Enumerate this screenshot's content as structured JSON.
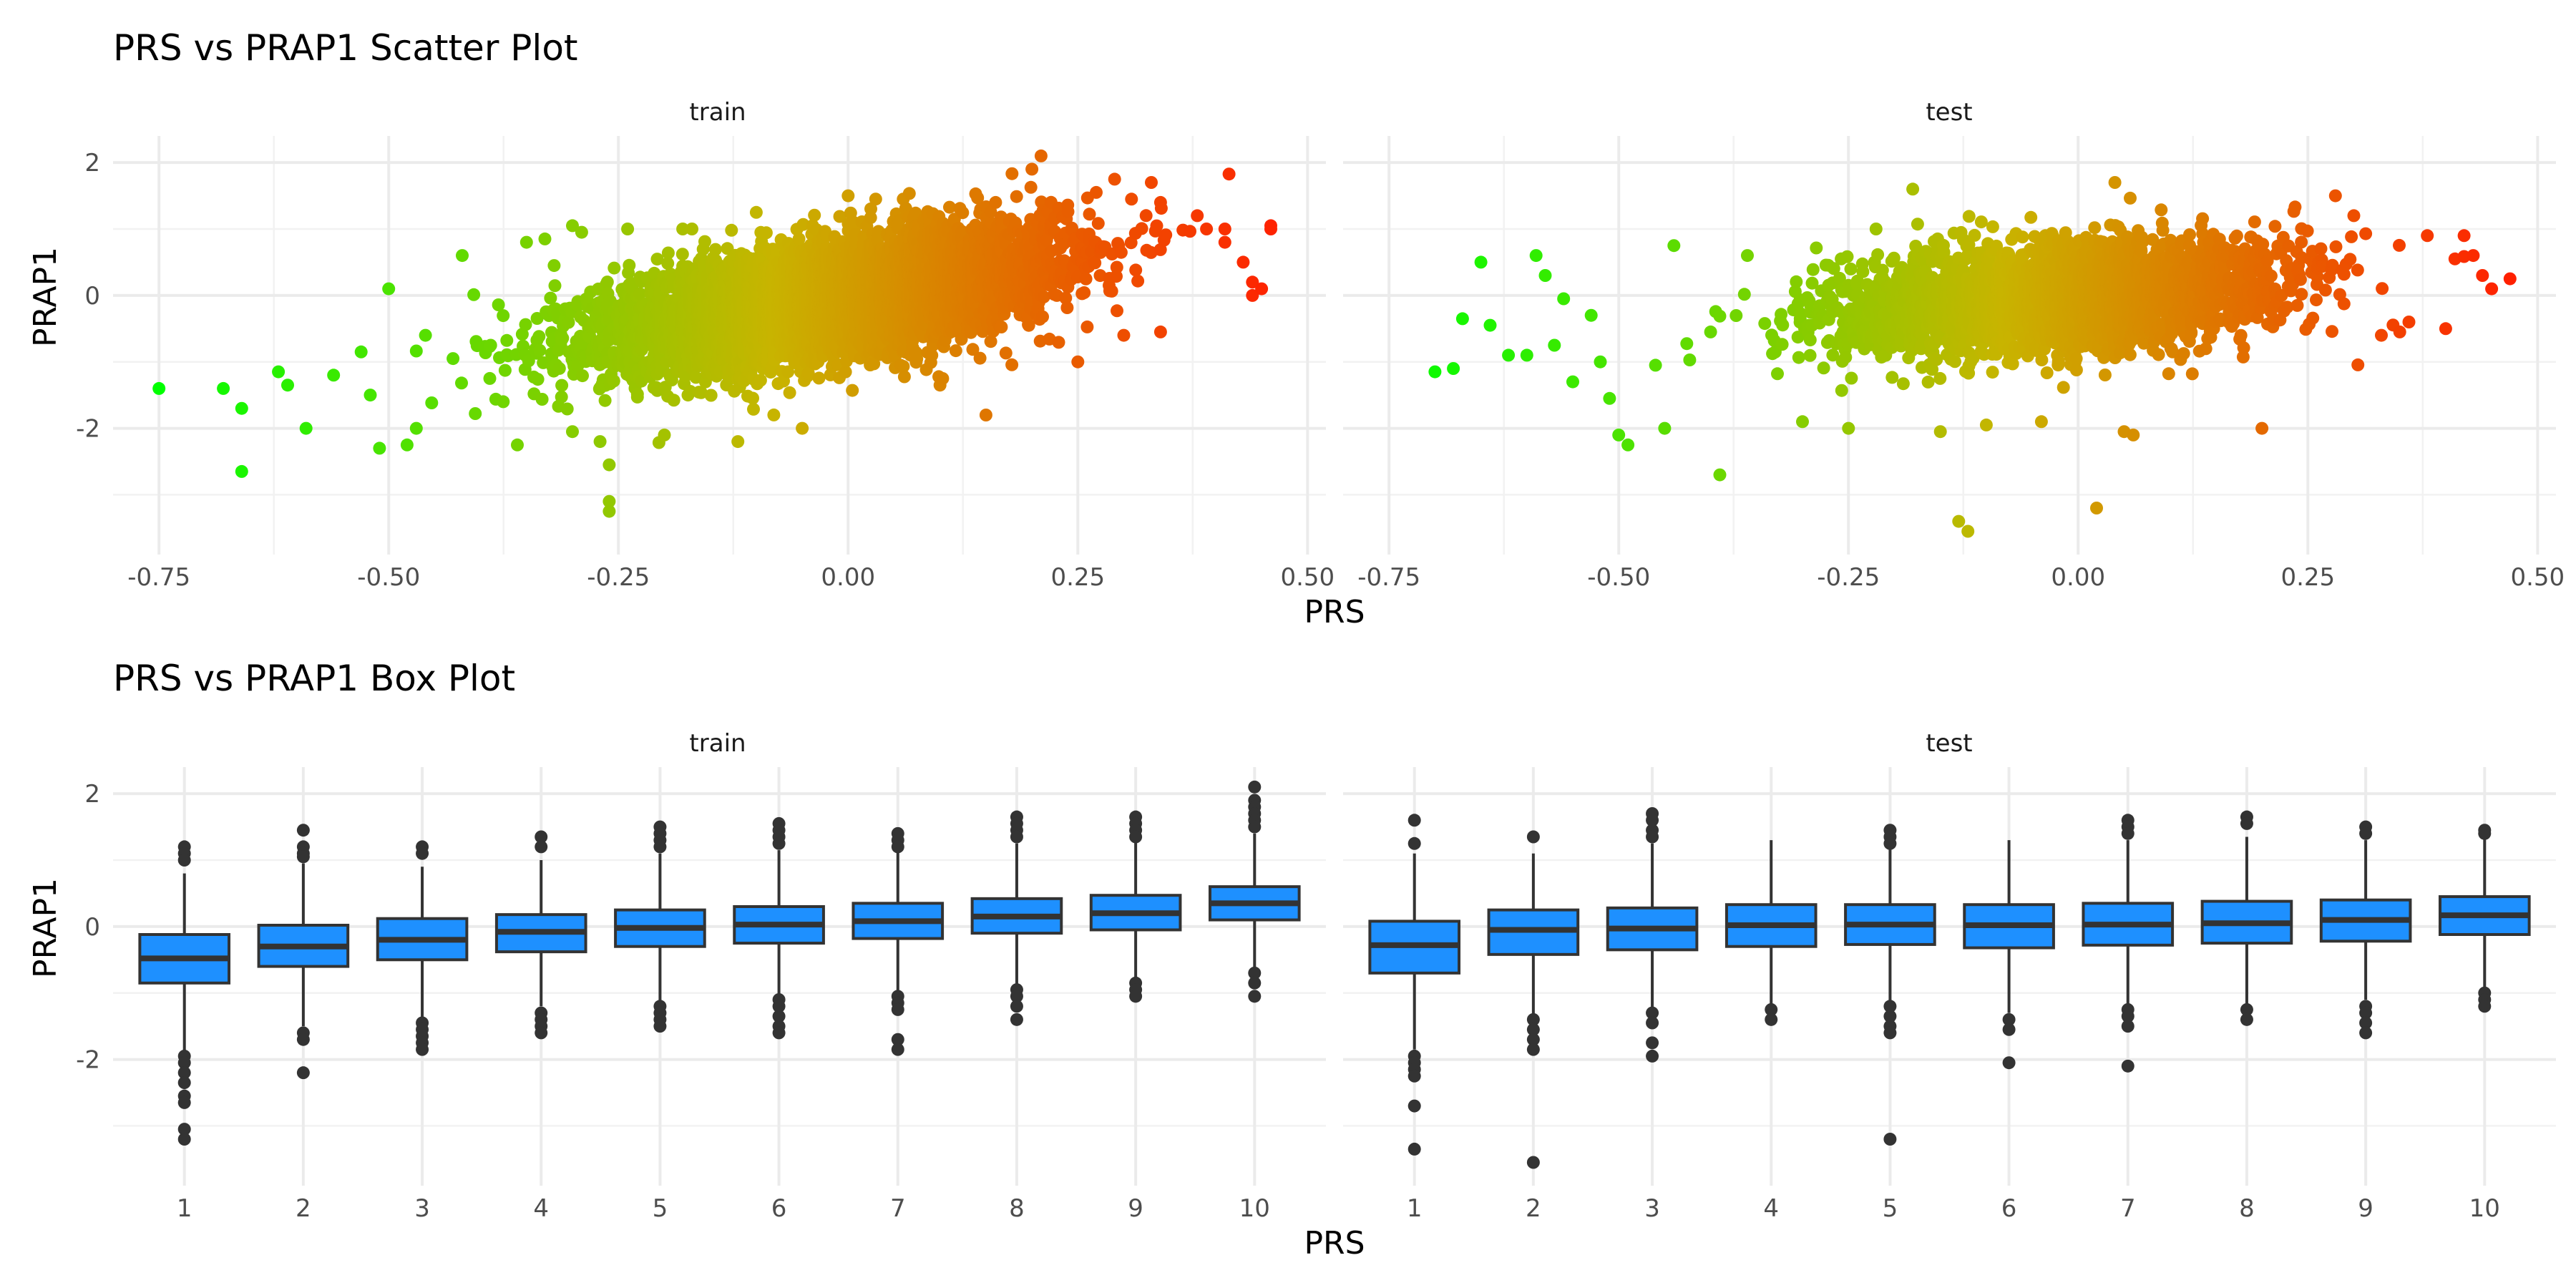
{
  "chart_data": [
    {
      "type": "scatter",
      "title": "PRS vs PRAP1 Scatter Plot",
      "xlabel": "PRS",
      "ylabel": "PRAP1",
      "xlim": [
        -0.8,
        0.52
      ],
      "ylim": [
        -3.9,
        2.4
      ],
      "x_ticks": [
        -0.75,
        -0.5,
        -0.25,
        0,
        0.25,
        0.5
      ],
      "x_tick_labels": [
        "-0.75",
        "-0.50",
        "-0.25",
        "0.00",
        "0.25",
        "0.50"
      ],
      "y_ticks": [
        -2,
        0,
        2
      ],
      "y_tick_labels": [
        "-2",
        "0",
        "2"
      ],
      "grid": true,
      "legend": "none",
      "color_gradient": {
        "low": "#00ff00",
        "mid": "#c8b400",
        "high": "#ff2000",
        "mapped_to": "PRS"
      },
      "panels": [
        {
          "name": "train",
          "slope": 2.2,
          "noise_sd": 0.42,
          "x_mean": -0.02,
          "x_sd": 0.12,
          "approx_points": 6000,
          "points": [
            [
              -0.75,
              -1.4
            ],
            [
              -0.68,
              -1.4
            ],
            [
              -0.66,
              -2.65
            ],
            [
              -0.66,
              -1.7
            ],
            [
              -0.62,
              -1.15
            ],
            [
              -0.61,
              -1.35
            ],
            [
              -0.59,
              -2.0
            ],
            [
              -0.56,
              -1.2
            ],
            [
              -0.53,
              -0.85
            ],
            [
              -0.52,
              -1.5
            ],
            [
              -0.51,
              -2.3
            ],
            [
              -0.5,
              0.1
            ],
            [
              -0.48,
              -2.25
            ],
            [
              -0.47,
              -2.0
            ],
            [
              -0.46,
              -0.6
            ],
            [
              -0.43,
              -0.95
            ],
            [
              -0.42,
              0.6
            ],
            [
              -0.39,
              -1.25
            ],
            [
              -0.36,
              -2.25
            ],
            [
              -0.35,
              0.8
            ],
            [
              -0.33,
              0.85
            ],
            [
              -0.32,
              0.45
            ],
            [
              -0.3,
              1.05
            ],
            [
              -0.3,
              -2.05
            ],
            [
              -0.29,
              0.95
            ],
            [
              -0.27,
              -2.2
            ],
            [
              -0.26,
              -2.55
            ],
            [
              -0.26,
              -3.1
            ],
            [
              -0.26,
              -3.25
            ],
            [
              -0.24,
              1.0
            ],
            [
              -0.2,
              -2.1
            ],
            [
              -0.18,
              1.0
            ],
            [
              -0.17,
              1.0
            ],
            [
              -0.12,
              -2.2
            ],
            [
              -0.1,
              1.25
            ],
            [
              -0.05,
              -2.0
            ],
            [
              0.0,
              1.5
            ],
            [
              0.03,
              1.45
            ],
            [
              0.06,
              1.45
            ],
            [
              0.15,
              -1.8
            ],
            [
              0.2,
              1.9
            ],
            [
              0.21,
              2.1
            ],
            [
              0.27,
              1.55
            ],
            [
              0.29,
              1.75
            ],
            [
              0.33,
              1.7
            ],
            [
              0.34,
              1.4
            ],
            [
              0.38,
              1.2
            ],
            [
              0.39,
              1.0
            ],
            [
              0.41,
              0.8
            ],
            [
              0.41,
              1.0
            ],
            [
              0.43,
              0.5
            ],
            [
              0.44,
              0.2
            ],
            [
              0.45,
              0.1
            ],
            [
              0.46,
              1.05
            ],
            [
              0.46,
              1.0
            ],
            [
              0.44,
              0.0
            ],
            [
              0.34,
              -0.55
            ],
            [
              0.3,
              -0.6
            ],
            [
              0.25,
              -1.0
            ],
            [
              0.1,
              -1.35
            ]
          ]
        },
        {
          "name": "test",
          "slope": 0.95,
          "noise_sd": 0.4,
          "x_mean": -0.02,
          "x_sd": 0.12,
          "approx_points": 3000,
          "points": [
            [
              -0.7,
              -1.15
            ],
            [
              -0.68,
              -1.1
            ],
            [
              -0.67,
              -0.35
            ],
            [
              -0.65,
              0.5
            ],
            [
              -0.64,
              -0.45
            ],
            [
              -0.62,
              -0.9
            ],
            [
              -0.6,
              -0.9
            ],
            [
              -0.59,
              0.6
            ],
            [
              -0.58,
              0.3
            ],
            [
              -0.57,
              -0.75
            ],
            [
              -0.56,
              -0.05
            ],
            [
              -0.55,
              -1.3
            ],
            [
              -0.53,
              -0.3
            ],
            [
              -0.52,
              -1.0
            ],
            [
              -0.51,
              -1.55
            ],
            [
              -0.5,
              -2.1
            ],
            [
              -0.49,
              -2.25
            ],
            [
              -0.46,
              -1.05
            ],
            [
              -0.44,
              0.75
            ],
            [
              -0.45,
              -2.0
            ],
            [
              -0.4,
              -0.55
            ],
            [
              -0.39,
              -2.7
            ],
            [
              -0.36,
              0.6
            ],
            [
              -0.3,
              -1.9
            ],
            [
              -0.25,
              -2.0
            ],
            [
              -0.22,
              1.0
            ],
            [
              -0.18,
              1.6
            ],
            [
              -0.15,
              -2.05
            ],
            [
              -0.13,
              -3.4
            ],
            [
              -0.12,
              -3.55
            ],
            [
              -0.1,
              -1.95
            ],
            [
              -0.04,
              -1.9
            ],
            [
              0.04,
              1.7
            ],
            [
              0.05,
              -2.05
            ],
            [
              0.06,
              -2.1
            ],
            [
              0.02,
              -3.2
            ],
            [
              0.2,
              -2.0
            ],
            [
              0.28,
              1.5
            ],
            [
              0.3,
              1.2
            ],
            [
              0.36,
              -0.4
            ],
            [
              0.38,
              0.9
            ],
            [
              0.4,
              -0.5
            ],
            [
              0.41,
              0.55
            ],
            [
              0.42,
              0.9
            ],
            [
              0.43,
              0.6
            ],
            [
              0.44,
              0.3
            ],
            [
              0.45,
              0.1
            ],
            [
              0.47,
              0.25
            ],
            [
              0.33,
              -0.6
            ],
            [
              0.35,
              -0.55
            ]
          ]
        }
      ]
    },
    {
      "type": "box",
      "title": "PRS vs PRAP1 Box Plot",
      "xlabel": "PRS",
      "ylabel": "PRAP1",
      "categories": [
        "1",
        "2",
        "3",
        "4",
        "5",
        "6",
        "7",
        "8",
        "9",
        "10"
      ],
      "ylim": [
        -3.9,
        2.4
      ],
      "y_ticks": [
        -2,
        0,
        2
      ],
      "y_tick_labels": [
        "-2",
        "0",
        "2"
      ],
      "fill_color": "#1e90ff",
      "grid": true,
      "legend": "none",
      "panels": [
        {
          "name": "train",
          "boxes": [
            {
              "q1": -0.85,
              "median": -0.48,
              "q3": -0.12,
              "low": -1.9,
              "high": 0.8,
              "outliers": [
                1.2,
                1.1,
                1.0,
                -1.95,
                -2.05,
                -2.2,
                -2.35,
                -2.55,
                -2.65,
                -3.05,
                -3.2
              ]
            },
            {
              "q1": -0.6,
              "median": -0.3,
              "q3": 0.02,
              "low": -1.5,
              "high": 0.95,
              "outliers": [
                1.45,
                1.2,
                1.1,
                1.05,
                -1.6,
                -1.7,
                -2.2
              ]
            },
            {
              "q1": -0.5,
              "median": -0.2,
              "q3": 0.12,
              "low": -1.4,
              "high": 0.9,
              "outliers": [
                1.2,
                1.1,
                -1.45,
                -1.55,
                -1.65,
                -1.75,
                -1.85
              ]
            },
            {
              "q1": -0.38,
              "median": -0.08,
              "q3": 0.18,
              "low": -1.2,
              "high": 1.0,
              "outliers": [
                1.35,
                1.2,
                -1.3,
                -1.4,
                -1.5,
                -1.6
              ]
            },
            {
              "q1": -0.3,
              "median": -0.02,
              "q3": 0.25,
              "low": -1.15,
              "high": 1.1,
              "outliers": [
                1.5,
                1.4,
                1.3,
                1.2,
                -1.2,
                -1.3,
                -1.4,
                -1.5
              ]
            },
            {
              "q1": -0.25,
              "median": 0.03,
              "q3": 0.3,
              "low": -1.05,
              "high": 1.15,
              "outliers": [
                1.55,
                1.45,
                1.35,
                1.25,
                -1.1,
                -1.2,
                -1.35,
                -1.5,
                -1.6
              ]
            },
            {
              "q1": -0.18,
              "median": 0.08,
              "q3": 0.35,
              "low": -1.0,
              "high": 1.15,
              "outliers": [
                1.4,
                1.3,
                1.2,
                -1.05,
                -1.15,
                -1.25,
                -1.7,
                -1.85
              ]
            },
            {
              "q1": -0.1,
              "median": 0.15,
              "q3": 0.42,
              "low": -0.9,
              "high": 1.25,
              "outliers": [
                1.65,
                1.55,
                1.45,
                1.35,
                -0.95,
                -1.05,
                -1.2,
                -1.4
              ]
            },
            {
              "q1": -0.05,
              "median": 0.2,
              "q3": 0.47,
              "low": -0.8,
              "high": 1.3,
              "outliers": [
                1.65,
                1.55,
                1.45,
                1.35,
                -0.85,
                -0.95,
                -1.05
              ]
            },
            {
              "q1": 0.1,
              "median": 0.35,
              "q3": 0.6,
              "low": -0.65,
              "high": 1.4,
              "outliers": [
                2.1,
                1.9,
                1.8,
                1.7,
                1.6,
                1.5,
                -0.7,
                -0.85,
                -1.05
              ]
            }
          ]
        },
        {
          "name": "test",
          "boxes": [
            {
              "q1": -0.7,
              "median": -0.28,
              "q3": 0.08,
              "low": -1.85,
              "high": 1.1,
              "outliers": [
                1.6,
                1.25,
                -1.95,
                -2.05,
                -2.15,
                -2.25,
                -2.7,
                -3.35
              ]
            },
            {
              "q1": -0.42,
              "median": -0.05,
              "q3": 0.25,
              "low": -1.35,
              "high": 1.1,
              "outliers": [
                1.35,
                -1.4,
                -1.55,
                -1.7,
                -1.85,
                -3.55
              ]
            },
            {
              "q1": -0.35,
              "median": -0.03,
              "q3": 0.28,
              "low": -1.25,
              "high": 1.25,
              "outliers": [
                1.7,
                1.6,
                1.45,
                1.35,
                -1.3,
                -1.45,
                -1.75,
                -1.95
              ]
            },
            {
              "q1": -0.3,
              "median": 0.02,
              "q3": 0.33,
              "low": -1.2,
              "high": 1.3,
              "outliers": [
                -1.25,
                -1.4
              ]
            },
            {
              "q1": -0.27,
              "median": 0.03,
              "q3": 0.33,
              "low": -1.15,
              "high": 1.25,
              "outliers": [
                1.45,
                1.35,
                1.25,
                -1.2,
                -1.35,
                -1.5,
                -1.6,
                -3.2
              ]
            },
            {
              "q1": -0.32,
              "median": 0.02,
              "q3": 0.33,
              "low": -1.3,
              "high": 1.3,
              "outliers": [
                -1.4,
                -1.55,
                -2.05
              ]
            },
            {
              "q1": -0.28,
              "median": 0.03,
              "q3": 0.35,
              "low": -1.2,
              "high": 1.3,
              "outliers": [
                1.6,
                1.5,
                1.4,
                -1.25,
                -1.35,
                -1.5,
                -2.1
              ]
            },
            {
              "q1": -0.25,
              "median": 0.05,
              "q3": 0.38,
              "low": -1.2,
              "high": 1.35,
              "outliers": [
                1.65,
                1.55,
                -1.25,
                -1.4
              ]
            },
            {
              "q1": -0.22,
              "median": 0.1,
              "q3": 0.4,
              "low": -1.1,
              "high": 1.3,
              "outliers": [
                1.5,
                1.4,
                -1.2,
                -1.3,
                -1.45,
                -1.6
              ]
            },
            {
              "q1": -0.12,
              "median": 0.17,
              "q3": 0.45,
              "low": -0.95,
              "high": 1.35,
              "outliers": [
                1.45,
                1.4,
                -1.0,
                -1.1,
                -1.2
              ]
            }
          ]
        }
      ]
    }
  ]
}
